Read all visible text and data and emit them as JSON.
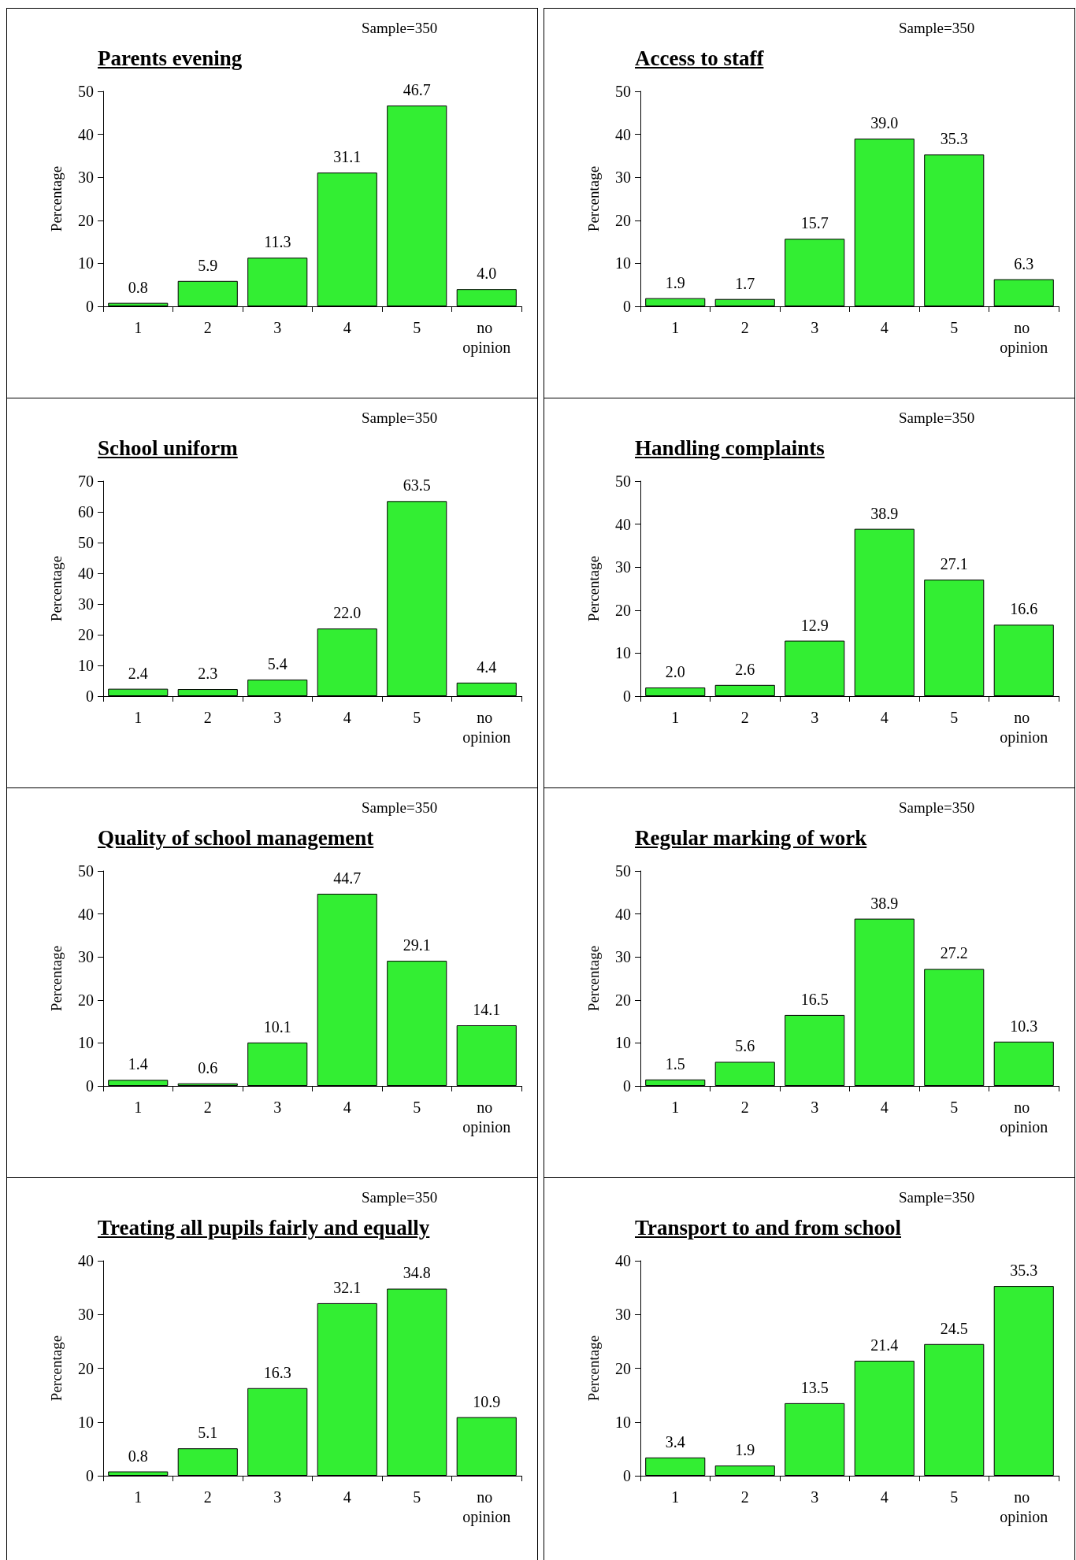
{
  "chart_data": [
    {
      "type": "bar",
      "title": "Parents evening",
      "ylabel": "Percentage",
      "annotations": [
        "Sample=350"
      ],
      "categories": [
        "1",
        "2",
        "3",
        "4",
        "5",
        "no opinion"
      ],
      "values": [
        0.8,
        5.9,
        11.3,
        31.1,
        46.7,
        4.0
      ],
      "value_labels": [
        "0.8",
        "5.9",
        "11.3",
        "31.1",
        "46.7",
        "4.0"
      ],
      "color": "#33ee33",
      "ylim": [
        0,
        50
      ],
      "yticks": [
        0,
        10,
        20,
        30,
        40,
        50
      ]
    },
    {
      "type": "bar",
      "title": "Access to staff",
      "ylabel": "Percentage",
      "annotations": [
        "Sample=350"
      ],
      "categories": [
        "1",
        "2",
        "3",
        "4",
        "5",
        "no opinion"
      ],
      "values": [
        1.9,
        1.7,
        15.7,
        39.0,
        35.3,
        6.3
      ],
      "value_labels": [
        "1.9",
        "1.7",
        "15.7",
        "39.0",
        "35.3",
        "6.3"
      ],
      "color": "#33ee33",
      "ylim": [
        0,
        50
      ],
      "yticks": [
        0,
        10,
        20,
        30,
        40,
        50
      ]
    },
    {
      "type": "bar",
      "title": "School uniform",
      "ylabel": "Percentage",
      "annotations": [
        "Sample=350"
      ],
      "categories": [
        "1",
        "2",
        "3",
        "4",
        "5",
        "no opinion"
      ],
      "values": [
        2.4,
        2.3,
        5.4,
        22.0,
        63.5,
        4.4
      ],
      "value_labels": [
        "2.4",
        "2.3",
        "5.4",
        "22.0",
        "63.5",
        "4.4"
      ],
      "color": "#33ee33",
      "ylim": [
        0,
        70
      ],
      "yticks": [
        0,
        10,
        20,
        30,
        40,
        50,
        60,
        70
      ]
    },
    {
      "type": "bar",
      "title": "Handling complaints",
      "ylabel": "Percentage",
      "annotations": [
        "Sample=350"
      ],
      "categories": [
        "1",
        "2",
        "3",
        "4",
        "5",
        "no opinion"
      ],
      "values": [
        2.0,
        2.6,
        12.9,
        38.9,
        27.1,
        16.6
      ],
      "value_labels": [
        "2.0",
        "2.6",
        "12.9",
        "38.9",
        "27.1",
        "16.6"
      ],
      "color": "#33ee33",
      "ylim": [
        0,
        50
      ],
      "yticks": [
        0,
        10,
        20,
        30,
        40,
        50
      ]
    },
    {
      "type": "bar",
      "title": "Quality of school management",
      "ylabel": "Percentage",
      "annotations": [
        "Sample=350"
      ],
      "categories": [
        "1",
        "2",
        "3",
        "4",
        "5",
        "no opinion"
      ],
      "values": [
        1.4,
        0.6,
        10.1,
        44.7,
        29.1,
        14.1
      ],
      "value_labels": [
        "1.4",
        "0.6",
        "10.1",
        "44.7",
        "29.1",
        "14.1"
      ],
      "color": "#33ee33",
      "ylim": [
        0,
        50
      ],
      "yticks": [
        0,
        10,
        20,
        30,
        40,
        50
      ]
    },
    {
      "type": "bar",
      "title": "Regular marking of work",
      "ylabel": "Percentage",
      "annotations": [
        "Sample=350"
      ],
      "categories": [
        "1",
        "2",
        "3",
        "4",
        "5",
        "no opinion"
      ],
      "values": [
        1.5,
        5.6,
        16.5,
        38.9,
        27.2,
        10.3
      ],
      "value_labels": [
        "1.5",
        "5.6",
        "16.5",
        "38.9",
        "27.2",
        "10.3"
      ],
      "color": "#33ee33",
      "ylim": [
        0,
        50
      ],
      "yticks": [
        0,
        10,
        20,
        30,
        40,
        50
      ]
    },
    {
      "type": "bar",
      "title": "Treating all pupils fairly and equally",
      "ylabel": "Percentage",
      "annotations": [
        "Sample=350"
      ],
      "categories": [
        "1",
        "2",
        "3",
        "4",
        "5",
        "no opinion"
      ],
      "values": [
        0.8,
        5.1,
        16.3,
        32.1,
        34.8,
        10.9
      ],
      "value_labels": [
        "0.8",
        "5.1",
        "16.3",
        "32.1",
        "34.8",
        "10.9"
      ],
      "color": "#33ee33",
      "ylim": [
        0,
        40
      ],
      "yticks": [
        0,
        10,
        20,
        30,
        40
      ]
    },
    {
      "type": "bar",
      "title": "Transport to and from school",
      "ylabel": "Percentage",
      "annotations": [
        "Sample=350"
      ],
      "categories": [
        "1",
        "2",
        "3",
        "4",
        "5",
        "no opinion"
      ],
      "values": [
        3.4,
        1.9,
        13.5,
        21.4,
        24.5,
        35.3
      ],
      "value_labels": [
        "3.4",
        "1.9",
        "13.5",
        "21.4",
        "24.5",
        "35.3"
      ],
      "color": "#33ee33",
      "ylim": [
        0,
        40
      ],
      "yticks": [
        0,
        10,
        20,
        30,
        40
      ]
    }
  ]
}
